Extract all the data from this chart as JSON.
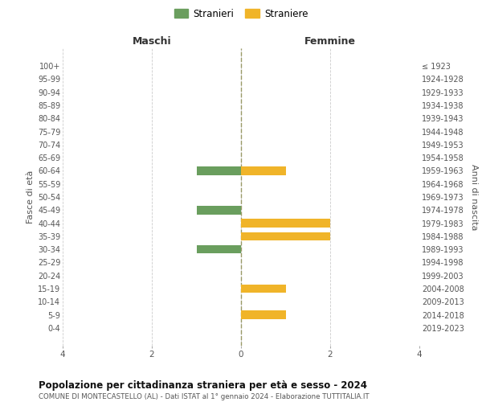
{
  "age_groups": [
    "0-4",
    "5-9",
    "10-14",
    "15-19",
    "20-24",
    "25-29",
    "30-34",
    "35-39",
    "40-44",
    "45-49",
    "50-54",
    "55-59",
    "60-64",
    "65-69",
    "70-74",
    "75-79",
    "80-84",
    "85-89",
    "90-94",
    "95-99",
    "100+"
  ],
  "birth_years": [
    "2019-2023",
    "2014-2018",
    "2009-2013",
    "2004-2008",
    "1999-2003",
    "1994-1998",
    "1989-1993",
    "1984-1988",
    "1979-1983",
    "1974-1978",
    "1969-1973",
    "1964-1968",
    "1959-1963",
    "1954-1958",
    "1949-1953",
    "1944-1948",
    "1939-1943",
    "1934-1938",
    "1929-1933",
    "1924-1928",
    "≤ 1923"
  ],
  "maschi": [
    0,
    0,
    0,
    0,
    0,
    0,
    -1,
    0,
    0,
    -1,
    0,
    0,
    -1,
    0,
    0,
    0,
    0,
    0,
    0,
    0,
    0
  ],
  "femmine": [
    0,
    1,
    0,
    1,
    0,
    0,
    0,
    2,
    2,
    0,
    0,
    0,
    1,
    0,
    0,
    0,
    0,
    0,
    0,
    0,
    0
  ],
  "color_maschi": "#6a9e5e",
  "color_femmine": "#f0b429",
  "label_maschi": "Stranieri",
  "label_femmine": "Straniere",
  "title": "Popolazione per cittadinanza straniera per età e sesso - 2024",
  "subtitle": "COMUNE DI MONTECASTELLO (AL) - Dati ISTAT al 1° gennaio 2024 - Elaborazione TUTTITALIA.IT",
  "xlabel_left": "Maschi",
  "xlabel_right": "Femmine",
  "ylabel_left": "Fasce di età",
  "ylabel_right": "Anni di nascita",
  "xlim": 4,
  "bg_color": "#ffffff",
  "grid_color": "#cccccc",
  "bar_height": 0.65
}
